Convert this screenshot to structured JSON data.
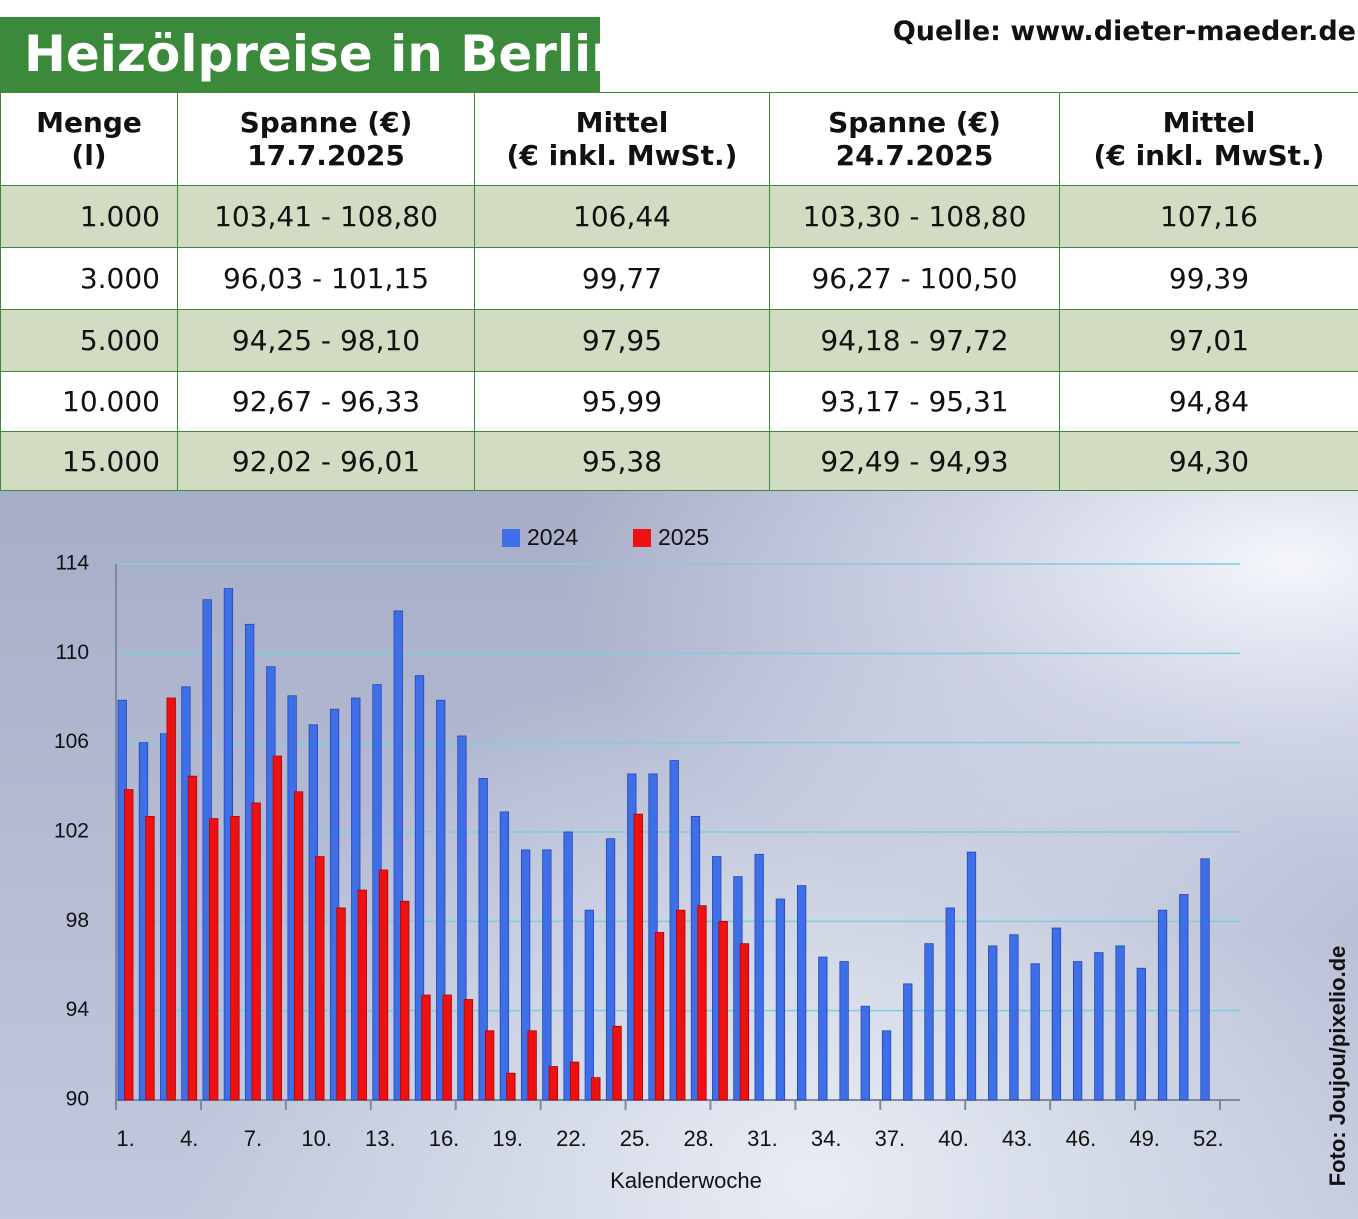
{
  "header": {
    "title": "Heizölpreise in Berlin",
    "source": "Quelle: www.dieter-maeder.de"
  },
  "table": {
    "columns": [
      [
        "Menge",
        "(l)"
      ],
      [
        "Spanne (€)",
        "17.7.2025"
      ],
      [
        "Mittel",
        "(€ inkl. MwSt.)"
      ],
      [
        "Spanne (€)",
        "24.7.2025"
      ],
      [
        "Mittel",
        "(€ inkl. MwSt.)"
      ]
    ],
    "rows": [
      [
        "1.000",
        "103,41 - 108,80",
        "106,44",
        "103,30 - 108,80",
        "107,16"
      ],
      [
        "3.000",
        "96,03 - 101,15",
        "99,77",
        "96,27 - 100,50",
        "99,39"
      ],
      [
        "5.000",
        "94,25 - 98,10",
        "97,95",
        "94,18 - 97,72",
        "97,01"
      ],
      [
        "10.000",
        "92,67 - 96,33",
        "95,99",
        "93,17 - 95,31",
        "94,84"
      ],
      [
        "15.000",
        "92,02 - 96,01",
        "95,38",
        "92,49 - 94,93",
        "94,30"
      ]
    ]
  },
  "chart_data": {
    "type": "bar",
    "x_label": "Kalenderwoche",
    "categories": [
      "1.",
      null,
      null,
      "4.",
      null,
      null,
      "7.",
      null,
      null,
      "10.",
      null,
      null,
      "13.",
      null,
      null,
      "16.",
      null,
      null,
      "19.",
      null,
      null,
      "22.",
      null,
      null,
      "25.",
      null,
      null,
      "28.",
      null,
      null,
      "31.",
      null,
      null,
      "34.",
      null,
      null,
      "37.",
      null,
      null,
      "40.",
      null,
      null,
      "43.",
      null,
      null,
      "46.",
      null,
      null,
      "49.",
      null,
      null,
      "52."
    ],
    "series": [
      {
        "name": "2024",
        "color": "#3f6fe6",
        "values": [
          107.9,
          106.0,
          106.4,
          108.5,
          112.4,
          112.9,
          111.3,
          109.4,
          108.1,
          106.8,
          107.5,
          108.0,
          108.6,
          111.9,
          109.0,
          107.9,
          106.3,
          104.4,
          102.9,
          101.2,
          101.2,
          102.0,
          98.5,
          101.7,
          104.6,
          104.6,
          105.2,
          102.7,
          100.9,
          100.0,
          101.0,
          99.0,
          99.6,
          96.4,
          96.2,
          94.2,
          93.1,
          95.2,
          97.0,
          98.6,
          101.1,
          96.9,
          97.4,
          96.1,
          97.7,
          96.2,
          96.6,
          96.9,
          95.9,
          98.5,
          99.2,
          100.8
        ]
      },
      {
        "name": "2025",
        "color": "#ee1111",
        "values": [
          103.9,
          102.7,
          108.0,
          104.5,
          102.6,
          102.7,
          103.3,
          105.4,
          103.8,
          100.9,
          98.6,
          99.4,
          100.3,
          98.9,
          94.7,
          94.7,
          94.5,
          93.1,
          91.2,
          93.1,
          91.5,
          91.7,
          91.0,
          93.3,
          102.8,
          97.5,
          98.5,
          98.7,
          98.0,
          97.0,
          null,
          null,
          null,
          null,
          null,
          null,
          null,
          null,
          null,
          null,
          null,
          null,
          null,
          null,
          null,
          null,
          null,
          null,
          null,
          null,
          null,
          null
        ]
      }
    ],
    "ylim": [
      90,
      114
    ],
    "yticks": [
      90,
      94,
      98,
      102,
      106,
      110,
      114
    ],
    "grid": true,
    "legend": "top"
  },
  "photo_credit": "Foto: Joujou/pixelio.de"
}
